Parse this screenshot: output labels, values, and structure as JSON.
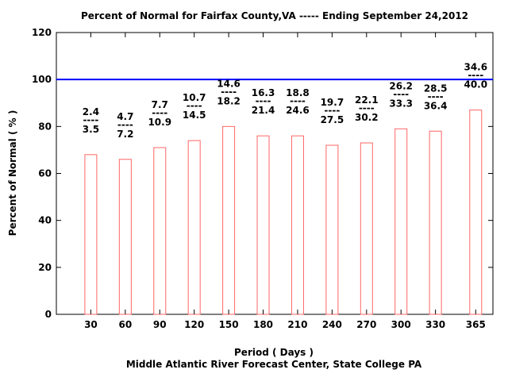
{
  "chart_data": {
    "type": "bar",
    "title": "Percent of Normal for Fairfax County,VA ----- Ending September 24,2012",
    "xlabel": "Period ( Days )",
    "ylabel": "Percent of Normal ( % )",
    "footer": "Middle Atlantic River Forecast Center, State College PA",
    "categories": [
      "30",
      "60",
      "90",
      "120",
      "150",
      "180",
      "210",
      "240",
      "270",
      "300",
      "330",
      "365"
    ],
    "x": [
      30,
      60,
      90,
      120,
      150,
      180,
      210,
      240,
      270,
      300,
      330,
      365
    ],
    "values": [
      68,
      66,
      71,
      74,
      80,
      76,
      76,
      72,
      73,
      79,
      78,
      87
    ],
    "observed": [
      "2.4",
      "4.7",
      "7.7",
      "10.7",
      "14.6",
      "16.3",
      "18.8",
      "19.7",
      "22.1",
      "26.2",
      "28.5",
      "34.6"
    ],
    "normal": [
      "3.5",
      "7.2",
      "10.9",
      "14.5",
      "18.2",
      "21.4",
      "24.6",
      "27.5",
      "30.2",
      "33.3",
      "36.4",
      "40.0"
    ],
    "fraction_separator": "----",
    "reference_line": 100,
    "xlim": [
      0,
      380
    ],
    "ylim": [
      0,
      120
    ],
    "yticks": [
      0,
      20,
      40,
      60,
      80,
      100,
      120
    ],
    "grid": false,
    "colors": {
      "bar": "#ff6666",
      "reference": "#0000ff",
      "axis": "#000000"
    }
  }
}
